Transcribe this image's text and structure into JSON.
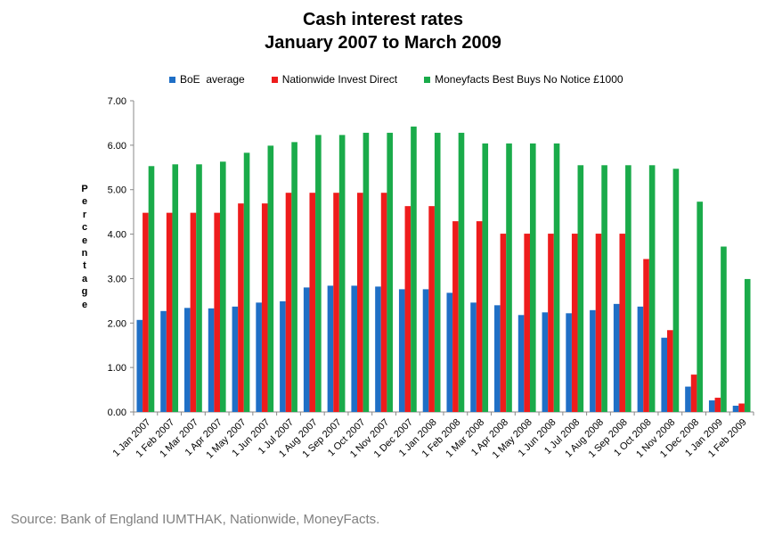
{
  "chart_data": {
    "type": "bar",
    "title": [
      "Cash interest rates",
      "January 2007 to March 2009"
    ],
    "xlabel": "",
    "ylabel": "Percentage",
    "ylim": [
      0,
      7
    ],
    "yticks": [
      "0.00",
      "1.00",
      "2.00",
      "3.00",
      "4.00",
      "5.00",
      "6.00",
      "7.00"
    ],
    "grid": false,
    "legend_position": "top",
    "categories": [
      "1 Jan 2007",
      "1 Feb 2007",
      "1 Mar 2007",
      "1 Apr 2007",
      "1 May 2007",
      "1 Jun 2007",
      "1 Jul 2007",
      "1 Aug 2007",
      "1 Sep 2007",
      "1 Oct 2007",
      "1 Nov 2007",
      "1 Dec 2007",
      "1 Jan 2008",
      "1 Feb 2008",
      "1 Mar 2008",
      "1 Apr 2008",
      "1 May 2008",
      "1 Jun 2008",
      "1 Jul 2008",
      "1 Aug 2008",
      "1 Sep 2008",
      "1 Oct 2008",
      "1 Nov 2008",
      "1 Dec 2008",
      "1 Jan 2009",
      "1 Feb 2009"
    ],
    "series": [
      {
        "name": "BoE  average",
        "color": "#1f6fc6",
        "values": [
          2.07,
          2.27,
          2.34,
          2.33,
          2.37,
          2.46,
          2.49,
          2.8,
          2.84,
          2.84,
          2.82,
          2.76,
          2.76,
          2.68,
          2.46,
          2.4,
          2.18,
          2.24,
          2.22,
          2.29,
          2.43,
          2.37,
          1.67,
          0.57,
          0.26,
          0.14
        ]
      },
      {
        "name": "Nationwide Invest Direct",
        "color": "#ee1c1c",
        "values": [
          4.48,
          4.48,
          4.48,
          4.48,
          4.69,
          4.69,
          4.93,
          4.93,
          4.93,
          4.93,
          4.93,
          4.63,
          4.63,
          4.29,
          4.29,
          4.01,
          4.01,
          4.01,
          4.01,
          4.01,
          4.01,
          3.44,
          1.84,
          0.84,
          0.32,
          0.19
        ]
      },
      {
        "name": "Moneyfacts Best Buys No Notice £1000",
        "color": "#1aab4a",
        "values": [
          5.53,
          5.57,
          5.57,
          5.63,
          5.83,
          5.99,
          6.07,
          6.23,
          6.23,
          6.28,
          6.28,
          6.42,
          6.28,
          6.28,
          6.04,
          6.04,
          6.04,
          6.04,
          5.55,
          5.55,
          5.55,
          5.55,
          5.47,
          4.73,
          3.72,
          2.99
        ]
      }
    ]
  },
  "source": "Source:  Bank of England IUMTHAK, Nationwide, MoneyFacts."
}
